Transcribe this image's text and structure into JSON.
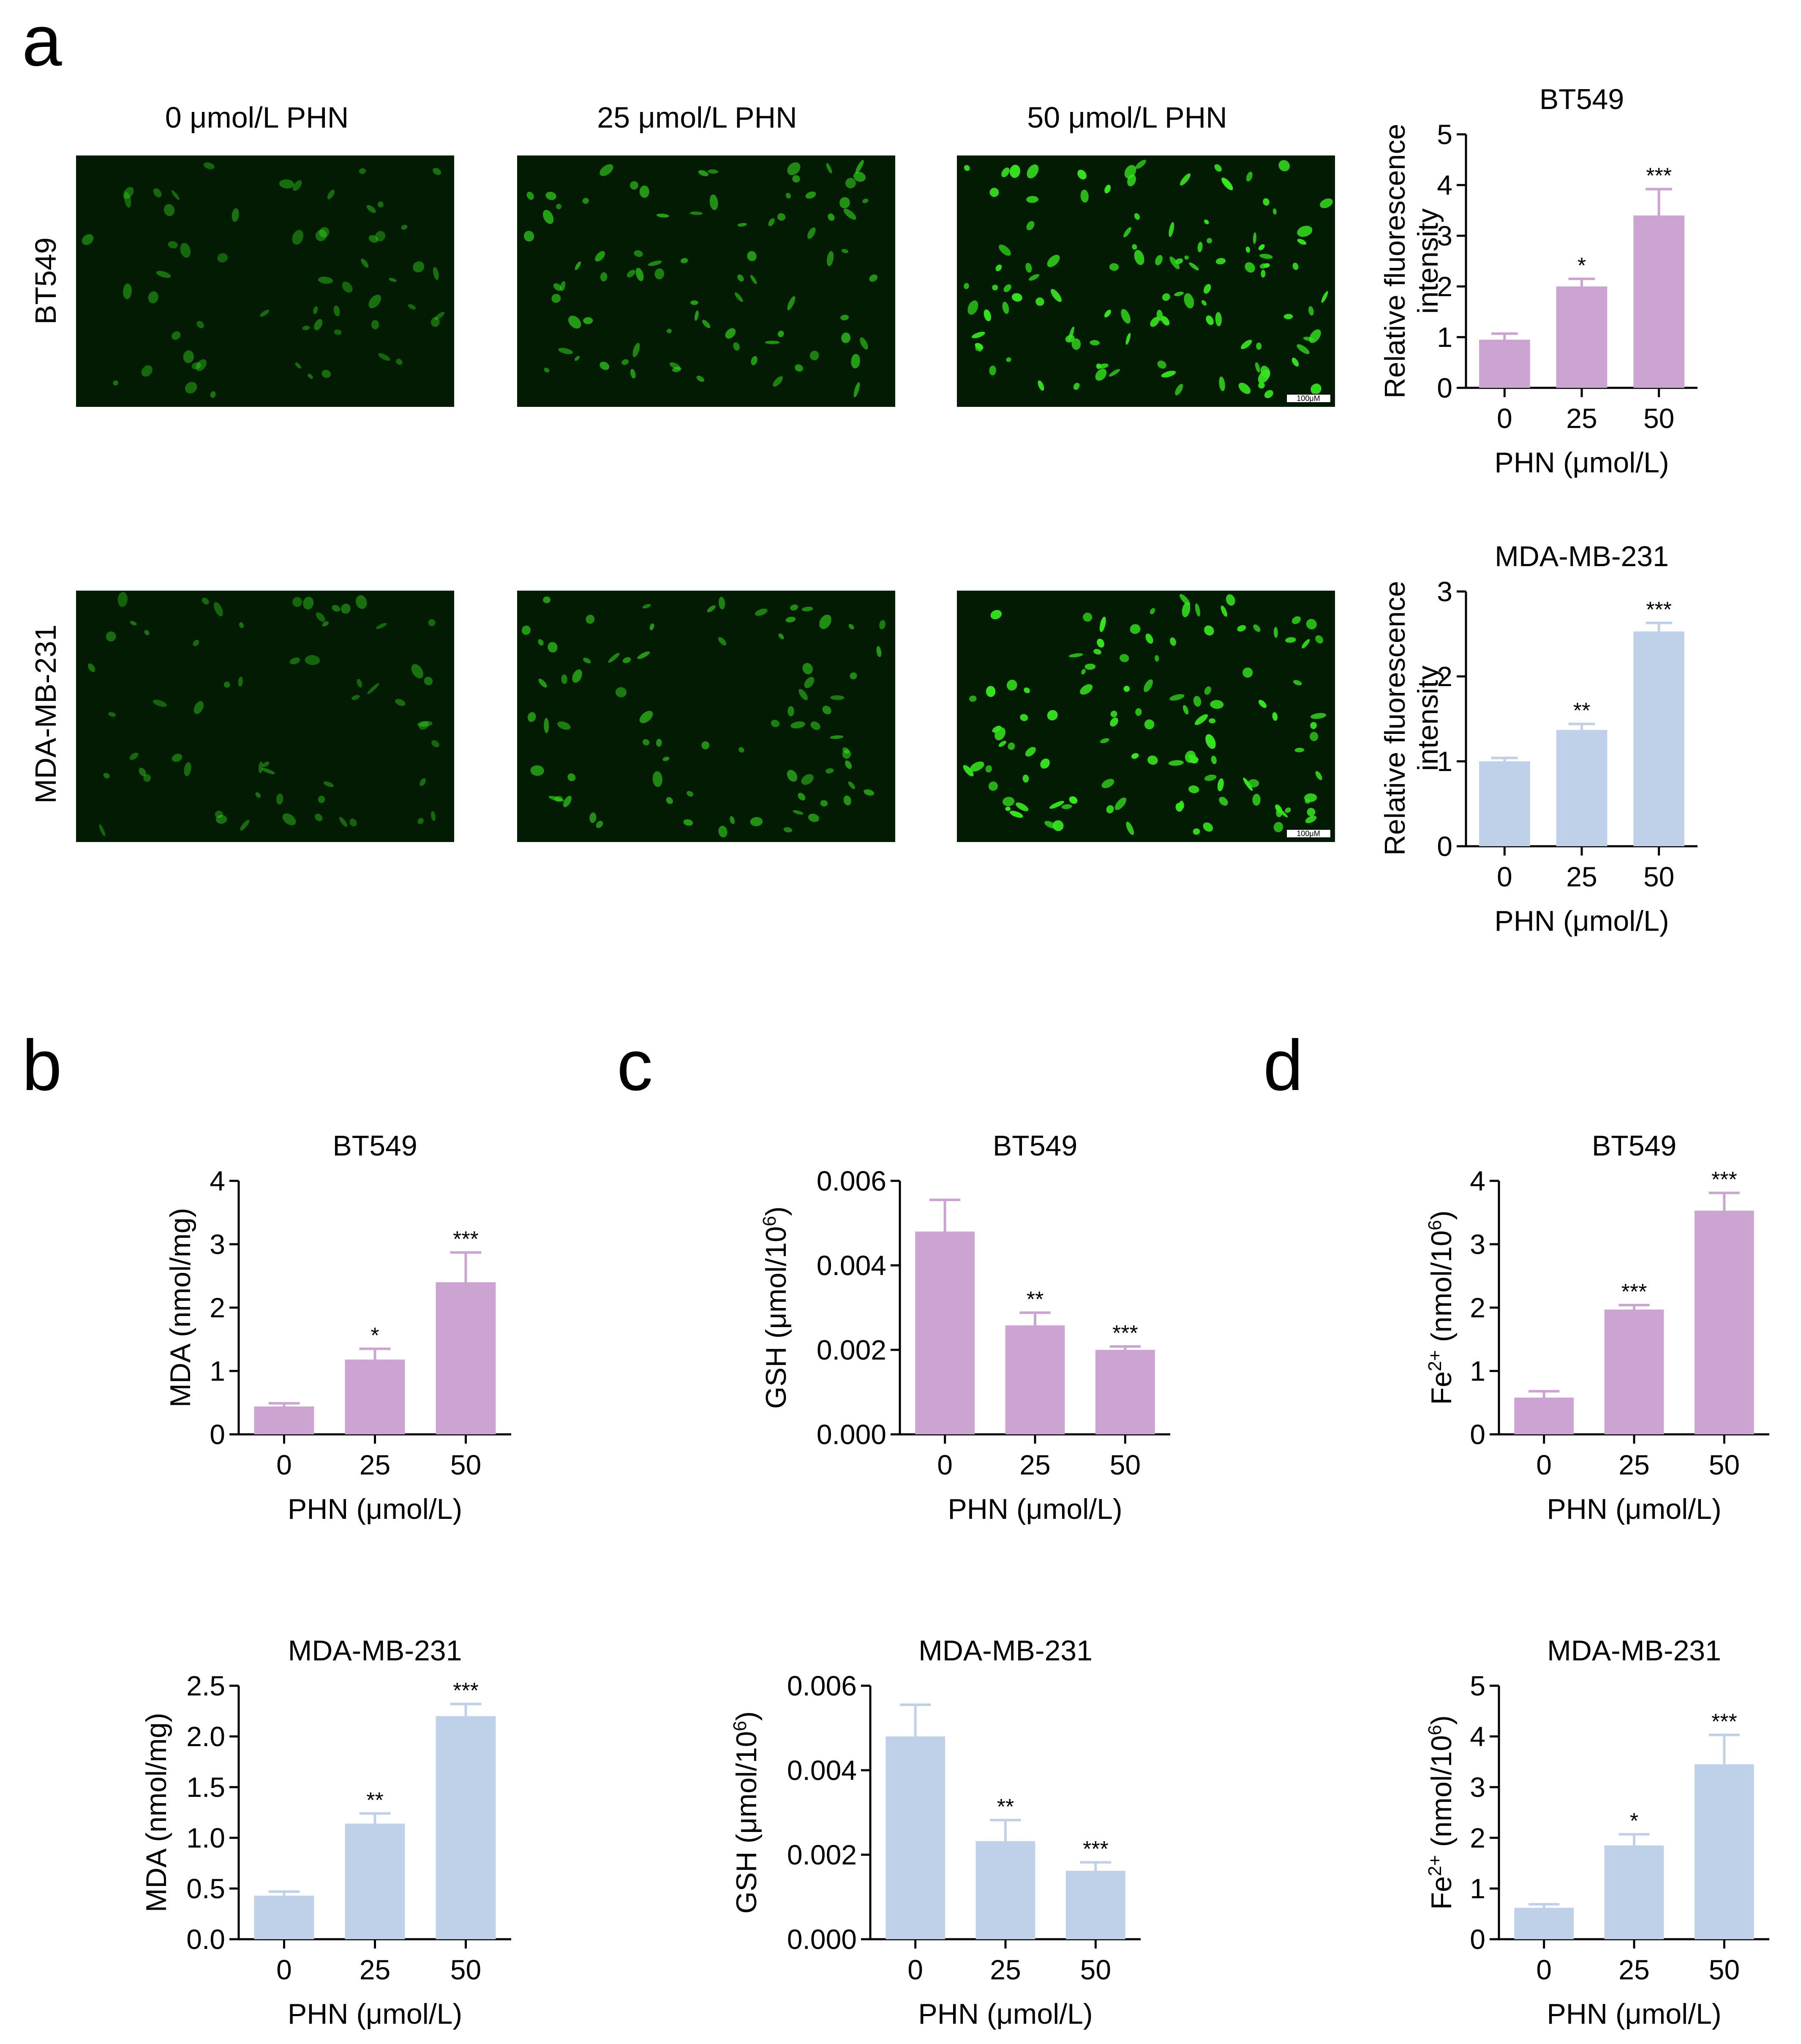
{
  "panel_letters": [
    "a",
    "b",
    "c",
    "d"
  ],
  "micrographs": {
    "column_labels": [
      "0 μmol/L PHN",
      "25 μmol/L PHN",
      "50 μmol/L PHN"
    ],
    "row_labels": [
      "BT549",
      "MDA-MB-231"
    ],
    "scale_bar_label": "100μM",
    "colors": {
      "background": "#031a03",
      "cell": "#36e61f"
    },
    "signal_levels": [
      [
        0.25,
        0.55,
        1.0
      ],
      [
        0.25,
        0.5,
        1.0
      ]
    ]
  },
  "colors": {
    "purple": "#cba4d2",
    "blue": "#bfd1e8",
    "axis": "#000000"
  },
  "chart_data": [
    {
      "id": "a-bt549",
      "type": "bar",
      "title": "BT549",
      "xlabel": "PHN (μmol/L)",
      "ylabel": [
        "Relative fluorescence",
        "intensity"
      ],
      "categories": [
        "0",
        "25",
        "50"
      ],
      "values": [
        0.95,
        2.0,
        3.4
      ],
      "errors": [
        0.12,
        0.15,
        0.52
      ],
      "significance": [
        "",
        "*",
        "***"
      ],
      "ylim": [
        0,
        5
      ],
      "yticks": [
        "0",
        "1",
        "2",
        "3",
        "4",
        "5"
      ],
      "color": "#cba4d2"
    },
    {
      "id": "a-mda",
      "type": "bar",
      "title": "MDA-MB-231",
      "xlabel": "PHN (μmol/L)",
      "ylabel": [
        "Relative fluorescence",
        "intensity"
      ],
      "categories": [
        "0",
        "25",
        "50"
      ],
      "values": [
        1.0,
        1.37,
        2.53
      ],
      "errors": [
        0.04,
        0.07,
        0.1
      ],
      "significance": [
        "",
        "**",
        "***"
      ],
      "ylim": [
        0,
        3
      ],
      "yticks": [
        "0",
        "1",
        "2",
        "3"
      ],
      "color": "#bfd1e8"
    },
    {
      "id": "b-bt549",
      "type": "bar",
      "title": "BT549",
      "xlabel": "PHN (μmol/L)",
      "ylabel": [
        "MDA (nmol/mg)"
      ],
      "categories": [
        "0",
        "25",
        "50"
      ],
      "values": [
        0.44,
        1.18,
        2.4
      ],
      "errors": [
        0.05,
        0.17,
        0.47
      ],
      "significance": [
        "",
        "*",
        "***"
      ],
      "ylim": [
        0,
        4
      ],
      "yticks": [
        "0",
        "1",
        "2",
        "3",
        "4"
      ],
      "color": "#cba4d2"
    },
    {
      "id": "b-mda",
      "type": "bar",
      "title": "MDA-MB-231",
      "xlabel": "PHN (μmol/L)",
      "ylabel": [
        "MDA (nmol/mg)"
      ],
      "categories": [
        "0",
        "25",
        "50"
      ],
      "values": [
        0.43,
        1.14,
        2.2
      ],
      "errors": [
        0.04,
        0.1,
        0.12
      ],
      "significance": [
        "",
        "**",
        "***"
      ],
      "ylim": [
        0,
        2.5
      ],
      "yticks": [
        "0.0",
        "0.5",
        "1.0",
        "1.5",
        "2.0",
        "2.5"
      ],
      "color": "#bfd1e8"
    },
    {
      "id": "c-bt549",
      "type": "bar",
      "title": "BT549",
      "xlabel": "PHN (μmol/L)",
      "ylabel": [
        "GSH (μmol/10",
        "6",
        ")"
      ],
      "categories": [
        "0",
        "25",
        "50"
      ],
      "values": [
        0.0048,
        0.00258,
        0.002
      ],
      "errors": [
        0.00075,
        0.0003,
        8e-05
      ],
      "significance": [
        "",
        "**",
        "***"
      ],
      "ylim": [
        0,
        0.006
      ],
      "yticks": [
        "0.000",
        "0.002",
        "0.004",
        "0.006"
      ],
      "color": "#cba4d2"
    },
    {
      "id": "c-mda",
      "type": "bar",
      "title": "MDA-MB-231",
      "xlabel": "PHN (μmol/L)",
      "ylabel": [
        "GSH (μmol/10",
        "6",
        ")"
      ],
      "categories": [
        "0",
        "25",
        "50"
      ],
      "values": [
        0.0048,
        0.00232,
        0.00162
      ],
      "errors": [
        0.00075,
        0.0005,
        0.0002
      ],
      "significance": [
        "",
        "**",
        "***"
      ],
      "ylim": [
        0,
        0.006
      ],
      "yticks": [
        "0.000",
        "0.002",
        "0.004",
        "0.006"
      ],
      "color": "#bfd1e8"
    },
    {
      "id": "d-bt549",
      "type": "bar",
      "title": "BT549",
      "xlabel": "PHN (μmol/L)",
      "ylabel": [
        "Fe",
        "2+",
        " (nmol/10",
        "6",
        ")"
      ],
      "categories": [
        "0",
        "25",
        "50"
      ],
      "values": [
        0.58,
        1.97,
        3.53
      ],
      "errors": [
        0.1,
        0.07,
        0.28
      ],
      "significance": [
        "",
        "***",
        "***"
      ],
      "ylim": [
        0,
        4
      ],
      "yticks": [
        "0",
        "1",
        "2",
        "3",
        "4"
      ],
      "color": "#cba4d2"
    },
    {
      "id": "d-mda",
      "type": "bar",
      "title": "MDA-MB-231",
      "xlabel": "PHN (μmol/L)",
      "ylabel": [
        "Fe",
        "2+",
        " (nmol/10",
        "6",
        ")"
      ],
      "categories": [
        "0",
        "25",
        "50"
      ],
      "values": [
        0.62,
        1.85,
        3.45
      ],
      "errors": [
        0.07,
        0.22,
        0.58
      ],
      "significance": [
        "",
        "*",
        "***"
      ],
      "ylim": [
        0,
        5
      ],
      "yticks": [
        "0",
        "1",
        "2",
        "3",
        "4",
        "5"
      ],
      "color": "#bfd1e8"
    }
  ]
}
